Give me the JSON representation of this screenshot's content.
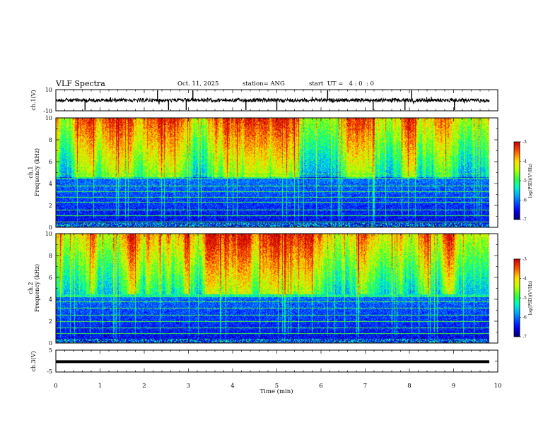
{
  "header": {
    "title": "VLF Spectra",
    "date": "Oct. 11, 2025",
    "station": "station= ANG",
    "start_ut": "start  UT =   4 : 0  : 0"
  },
  "colors": {
    "waveform": "#000000",
    "colormap": [
      "#00007a",
      "#0000ff",
      "#00aaff",
      "#00ffaa",
      "#33ff33",
      "#ccff00",
      "#ffdd00",
      "#ff5500",
      "#cc0000",
      "#ffffff"
    ]
  },
  "chart_data": [
    {
      "type": "line",
      "panel": "ch1-waveform",
      "ylabel": "ch.1(V)",
      "yticks": [
        "10",
        "-10"
      ],
      "ylim": [
        -10,
        10
      ],
      "baseline_level": 0,
      "spike_times_min": [
        0.66,
        2.3,
        2.55,
        2.95,
        3.1,
        4.3,
        5.0,
        6.15,
        7.18,
        7.9,
        8.05,
        9.02
      ],
      "xlim": [
        0,
        10
      ]
    },
    {
      "type": "heatmap",
      "panel": "ch1-spectrogram",
      "ylabel": "ch.1\nFrequency (kHz)",
      "yticks": [
        "0",
        "2",
        "4",
        "6",
        "8",
        "10"
      ],
      "ylim": [
        0,
        10
      ],
      "xlim": [
        0,
        9.8
      ],
      "colorbar": {
        "label": "log(PSD)(V²/Hz)",
        "ticks": [
          "-3",
          "-4",
          "-5",
          "-6",
          "-7"
        ],
        "range": [
          -7,
          -3
        ]
      },
      "noise_line_freqs_khz": [
        0.5,
        1.1,
        1.6,
        2.3,
        2.8,
        3.3,
        3.8,
        4.5,
        4.9
      ]
    },
    {
      "type": "heatmap",
      "panel": "ch2-spectrogram",
      "ylabel": "ch.2\nFrequency (kHz)",
      "yticks": [
        "0",
        "2",
        "4",
        "6",
        "8",
        "10"
      ],
      "ylim": [
        0,
        10
      ],
      "xlim": [
        0,
        9.8
      ],
      "colorbar": {
        "label": "log(PSD)(V²/Hz)",
        "ticks": [
          "-3",
          "-4",
          "-5",
          "-6",
          "-7"
        ],
        "range": [
          -7,
          -3
        ]
      },
      "noise_line_freqs_khz": [
        0.9,
        1.4,
        2.0,
        2.6,
        3.2,
        3.8,
        4.3
      ]
    },
    {
      "type": "line",
      "panel": "ch3-waveform",
      "ylabel": "ch.3(V)",
      "yticks": [
        "5",
        "0",
        "-5"
      ],
      "ylim": [
        -5,
        5
      ],
      "constant_level": -0.3,
      "xlim": [
        0,
        10
      ]
    }
  ],
  "xaxis": {
    "label": "Time  (min)",
    "ticks": [
      "0",
      "1",
      "2",
      "3",
      "4",
      "5",
      "6",
      "7",
      "8",
      "9",
      "10"
    ],
    "range": [
      0,
      10
    ]
  }
}
